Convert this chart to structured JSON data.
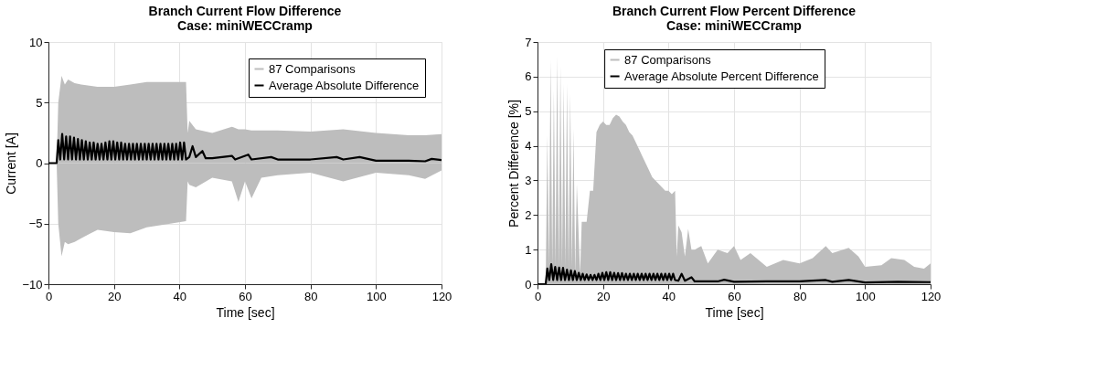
{
  "chart_data": [
    {
      "type": "line",
      "title": [
        "Branch Current Flow Difference",
        "Case: miniWECCramp"
      ],
      "xlabel": "Time [sec]",
      "ylabel": "Current [A]",
      "xlim": [
        0,
        120
      ],
      "xticks": [
        0,
        20,
        40,
        60,
        80,
        100,
        120
      ],
      "ylim": [
        -10,
        10
      ],
      "yticks": [
        -10,
        -5,
        0,
        5,
        10
      ],
      "grid": true,
      "legend": "top right",
      "series": [
        {
          "name": "87 Comparisons",
          "color": "#bdbdbd",
          "type": "area",
          "x": [
            0,
            2.5,
            3,
            4,
            5,
            6,
            8,
            10,
            15,
            20,
            25,
            30,
            35,
            42,
            42.5,
            43,
            45,
            50,
            56,
            58,
            60,
            62,
            65,
            70,
            80,
            90,
            100,
            110,
            115,
            120
          ],
          "values": [
            0,
            0,
            5,
            7.2,
            6.5,
            6.9,
            6.6,
            6.5,
            6.3,
            6.3,
            6.5,
            6.7,
            6.7,
            6.7,
            2.5,
            3.5,
            2.8,
            2.5,
            3.0,
            2.8,
            2.8,
            2.7,
            2.7,
            2.7,
            2.6,
            2.8,
            2.5,
            2.3,
            2.3,
            2.4
          ]
        },
        {
          "color": "#bdbdbd",
          "type": "area",
          "x": [
            0,
            2.5,
            3,
            4,
            5,
            6,
            8,
            10,
            15,
            20,
            25,
            30,
            35,
            42,
            42.5,
            43,
            45,
            50,
            56,
            58,
            60,
            62,
            65,
            70,
            80,
            90,
            100,
            110,
            115,
            120
          ],
          "values": [
            0,
            0,
            -5,
            -7.7,
            -6.5,
            -6.7,
            -6.5,
            -6.2,
            -5.5,
            -5.7,
            -5.8,
            -5.3,
            -5.1,
            -4.8,
            -1.5,
            -1.8,
            -2,
            -1.2,
            -1.5,
            -3.2,
            -1.5,
            -2.9,
            -1.2,
            -1,
            -0.8,
            -1.5,
            -0.8,
            -1.0,
            -1.3,
            -0.6
          ]
        },
        {
          "name": "Average Absolute Difference",
          "color": "#000000",
          "x": [
            0,
            2.5,
            3.0,
            3.6,
            4.2,
            4.8,
            5.4,
            6.0,
            6.6,
            7.2,
            7.8,
            8.4,
            9.0,
            9.6,
            10.2,
            10.8,
            11.4,
            12.0,
            12.6,
            13.2,
            13.8,
            14.4,
            15.0,
            15.6,
            16.2,
            16.8,
            17.4,
            18.0,
            18.6,
            19.2,
            19.8,
            20.4,
            21.0,
            21.6,
            22.2,
            22.8,
            23.4,
            24.0,
            24.6,
            25.2,
            25.8,
            26.4,
            27.0,
            27.6,
            28.2,
            28.8,
            29.4,
            30.0,
            30.6,
            31.2,
            31.8,
            32.4,
            33.0,
            33.6,
            34.2,
            34.8,
            35.4,
            36.0,
            36.6,
            37.2,
            37.8,
            38.4,
            39.0,
            39.6,
            40.2,
            40.8,
            41.4,
            42.0,
            43,
            44,
            45,
            47,
            48,
            50,
            56,
            57,
            61,
            62,
            68,
            70,
            80,
            88,
            90,
            95,
            100,
            110,
            115,
            117,
            120
          ],
          "values": [
            0,
            0,
            1.9,
            0.3,
            2.4,
            0.3,
            2.2,
            0.3,
            2.2,
            0.3,
            2.1,
            0.3,
            2.0,
            0.3,
            1.9,
            0.3,
            1.8,
            0.3,
            1.7,
            0.3,
            1.7,
            0.3,
            1.6,
            0.3,
            1.6,
            0.3,
            1.7,
            0.3,
            1.8,
            0.3,
            1.8,
            0.3,
            1.7,
            0.3,
            1.7,
            0.3,
            1.6,
            0.3,
            1.6,
            0.3,
            1.6,
            0.3,
            1.6,
            0.3,
            1.6,
            0.3,
            1.6,
            0.3,
            1.6,
            0.3,
            1.6,
            0.3,
            1.6,
            0.3,
            1.6,
            0.3,
            1.6,
            0.3,
            1.6,
            0.3,
            1.6,
            0.3,
            1.6,
            0.3,
            1.7,
            0.3,
            1.7,
            0.3,
            0.5,
            1.4,
            0.5,
            1.0,
            0.4,
            0.4,
            0.6,
            0.3,
            0.7,
            0.3,
            0.5,
            0.3,
            0.3,
            0.5,
            0.3,
            0.5,
            0.2,
            0.2,
            0.15,
            0.35,
            0.25
          ]
        }
      ]
    },
    {
      "type": "line",
      "title": [
        "Branch Current Flow Percent Difference",
        "Case: miniWECCramp"
      ],
      "xlabel": "Time [sec]",
      "ylabel": "Percent Difference [%]",
      "xlim": [
        0,
        120
      ],
      "xticks": [
        0,
        20,
        40,
        60,
        80,
        100,
        120
      ],
      "ylim": [
        0,
        7
      ],
      "yticks": [
        0,
        1,
        2,
        3,
        4,
        5,
        6,
        7
      ],
      "grid": true,
      "legend": "top",
      "series": [
        {
          "name": "87 Comparisons",
          "color": "#bdbdbd",
          "type": "area",
          "x": [
            0,
            2.5,
            3,
            3.5,
            4,
            4.5,
            5,
            5.5,
            6,
            6.5,
            7,
            7.5,
            8,
            8.5,
            9,
            9.5,
            10,
            10.5,
            11,
            11.5,
            12,
            13,
            13.5,
            15,
            16,
            17,
            18,
            19,
            20,
            21,
            22,
            23,
            24,
            25,
            26,
            27,
            28,
            29,
            30,
            31,
            32,
            33,
            34,
            35,
            36,
            37,
            38,
            39,
            40,
            41,
            42,
            42.5,
            43,
            44,
            45,
            46,
            47,
            48,
            50,
            52,
            55,
            58,
            60,
            62,
            65,
            70,
            75,
            80,
            84,
            88,
            90,
            95,
            98,
            100,
            105,
            108,
            112,
            115,
            118,
            120
          ],
          "values": [
            0,
            0,
            4.3,
            0.5,
            6.5,
            0.5,
            5.6,
            0.5,
            6.6,
            0.5,
            6.3,
            0.5,
            5.8,
            0.5,
            5.8,
            0.5,
            5.5,
            0.5,
            4.5,
            0.3,
            2.9,
            0.3,
            1.8,
            1.8,
            2.7,
            2.7,
            4.4,
            4.6,
            4.7,
            4.6,
            4.6,
            4.8,
            4.9,
            4.85,
            4.7,
            4.6,
            4.4,
            4.3,
            4.1,
            3.9,
            3.7,
            3.5,
            3.3,
            3.1,
            3.0,
            2.9,
            2.8,
            2.7,
            2.7,
            2.6,
            2.7,
            0.8,
            1.7,
            1.5,
            0.8,
            1.6,
            1.0,
            1.0,
            1.1,
            0.6,
            1.0,
            0.9,
            1.1,
            0.7,
            0.9,
            0.5,
            0.7,
            0.6,
            0.75,
            1.1,
            0.9,
            1.05,
            0.8,
            0.5,
            0.55,
            0.75,
            0.7,
            0.5,
            0.45,
            0.6
          ]
        },
        {
          "name": "Average Absolute Percent Difference",
          "color": "#000000",
          "x": [
            0,
            2.5,
            3.0,
            3.6,
            4.2,
            4.8,
            5.4,
            6.0,
            6.6,
            7.2,
            7.8,
            8.4,
            9.0,
            9.6,
            10.2,
            10.8,
            11.4,
            12.0,
            12.6,
            13.2,
            13.8,
            14.4,
            15.0,
            15.6,
            16.2,
            16.8,
            17.4,
            18.0,
            18.6,
            19.2,
            19.8,
            20.4,
            21.0,
            21.6,
            22.2,
            22.8,
            23.4,
            24.0,
            24.6,
            25.2,
            25.8,
            26.4,
            27.0,
            27.6,
            28.2,
            28.8,
            29.4,
            30.0,
            30.6,
            31.2,
            31.8,
            32.4,
            33.0,
            33.6,
            34.2,
            34.8,
            35.4,
            36.0,
            36.6,
            37.2,
            37.8,
            38.4,
            39.0,
            39.6,
            40.2,
            40.8,
            41.4,
            42.0,
            43,
            44,
            45,
            47,
            48,
            55,
            57,
            60,
            70,
            80,
            88,
            90,
            95,
            100,
            110,
            120
          ],
          "values": [
            0,
            0,
            0.45,
            0.12,
            0.58,
            0.12,
            0.5,
            0.12,
            0.48,
            0.12,
            0.47,
            0.12,
            0.42,
            0.12,
            0.4,
            0.12,
            0.38,
            0.12,
            0.33,
            0.12,
            0.3,
            0.12,
            0.28,
            0.12,
            0.27,
            0.12,
            0.27,
            0.12,
            0.3,
            0.12,
            0.33,
            0.12,
            0.35,
            0.12,
            0.35,
            0.12,
            0.33,
            0.12,
            0.32,
            0.12,
            0.32,
            0.12,
            0.3,
            0.12,
            0.3,
            0.12,
            0.3,
            0.12,
            0.3,
            0.12,
            0.3,
            0.12,
            0.3,
            0.12,
            0.3,
            0.12,
            0.3,
            0.12,
            0.3,
            0.12,
            0.3,
            0.12,
            0.3,
            0.12,
            0.3,
            0.12,
            0.3,
            0.12,
            0.1,
            0.3,
            0.1,
            0.2,
            0.08,
            0.08,
            0.13,
            0.07,
            0.08,
            0.08,
            0.12,
            0.07,
            0.12,
            0.05,
            0.07,
            0.06
          ]
        }
      ]
    }
  ]
}
